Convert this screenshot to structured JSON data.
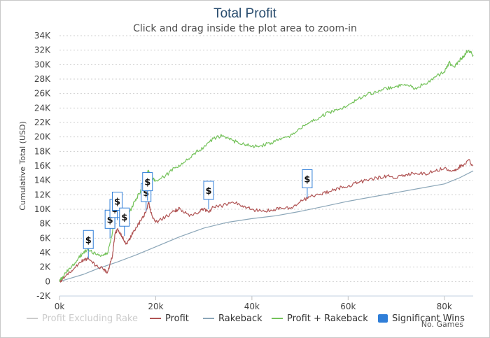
{
  "chart_data": {
    "type": "line",
    "title": "Total Profit",
    "subtitle": "Click and drag inside the plot area to zoom-in",
    "ylabel": "Cumulative Total (USD)",
    "xlabel": "No. Games",
    "ylim": [
      -2000,
      34000
    ],
    "xlim": [
      0,
      86000
    ],
    "y_ticks": [
      -2000,
      0,
      2000,
      4000,
      6000,
      8000,
      10000,
      12000,
      14000,
      16000,
      18000,
      20000,
      22000,
      24000,
      26000,
      28000,
      30000,
      32000,
      34000
    ],
    "y_tick_labels": [
      "-2K",
      "0",
      "2K",
      "4K",
      "6K",
      "8K",
      "10K",
      "12K",
      "14K",
      "16K",
      "18K",
      "20K",
      "22K",
      "24K",
      "26K",
      "28K",
      "30K",
      "32K",
      "34K"
    ],
    "x_ticks": [
      0,
      20000,
      40000,
      60000,
      80000
    ],
    "x_tick_labels": [
      "0k",
      "20k",
      "40k",
      "60k",
      "80k"
    ],
    "series": [
      {
        "name": "Profit Excluding Rake",
        "color": "#cccccc",
        "visible": false,
        "x": [],
        "values": []
      },
      {
        "name": "Profit",
        "color": "#b05454",
        "x": [
          0,
          1000,
          2500,
          4000,
          5000,
          6000,
          7500,
          9000,
          10000,
          11000,
          11500,
          12000,
          13000,
          14000,
          15000,
          16000,
          17000,
          18000,
          18500,
          19000,
          20000,
          22000,
          24000,
          25000,
          27000,
          29000,
          30000,
          31000,
          32000,
          34000,
          36000,
          38000,
          40000,
          42000,
          44000,
          46000,
          48000,
          50000,
          52000,
          54000,
          56000,
          58000,
          60000,
          62000,
          64000,
          66000,
          68000,
          70000,
          72000,
          74000,
          76000,
          78000,
          80000,
          82000,
          83000,
          84000,
          85000,
          86000
        ],
        "values": [
          0,
          500,
          1500,
          2500,
          3000,
          3200,
          2200,
          1800,
          1300,
          3500,
          6500,
          7200,
          6200,
          5200,
          6400,
          7500,
          8500,
          9700,
          11000,
          9500,
          8200,
          8900,
          9800,
          10100,
          9000,
          9600,
          10100,
          9600,
          10300,
          10500,
          11000,
          10500,
          10000,
          9700,
          9900,
          10200,
          10100,
          11000,
          11700,
          12000,
          12400,
          12900,
          13200,
          13700,
          14000,
          14300,
          14600,
          14300,
          14800,
          15000,
          14900,
          15300,
          15700,
          15300,
          15800,
          16100,
          16800,
          16000
        ]
      },
      {
        "name": "Rakeback",
        "color": "#8ba6b8",
        "x": [
          0,
          2000,
          5000,
          8000,
          12000,
          16000,
          20000,
          25000,
          30000,
          35000,
          40000,
          45000,
          50000,
          55000,
          60000,
          65000,
          70000,
          75000,
          80000,
          83000,
          86000
        ],
        "values": [
          0,
          400,
          1000,
          1800,
          2700,
          3700,
          4800,
          6200,
          7400,
          8200,
          8700,
          9100,
          9700,
          10400,
          11100,
          11700,
          12300,
          12900,
          13500,
          14300,
          15300
        ]
      },
      {
        "name": "Profit + Rakeback",
        "color": "#74c25a",
        "x": [
          0,
          1000,
          2500,
          4000,
          5000,
          6000,
          7500,
          9000,
          10000,
          11000,
          11500,
          12000,
          13000,
          14000,
          15000,
          16000,
          17000,
          18000,
          18500,
          19000,
          20000,
          22000,
          24000,
          26000,
          28000,
          30000,
          32000,
          34000,
          36000,
          38000,
          40000,
          42000,
          44000,
          46000,
          48000,
          50000,
          52000,
          54000,
          56000,
          58000,
          60000,
          62000,
          64000,
          66000,
          68000,
          70000,
          72000,
          74000,
          76000,
          78000,
          80000,
          81000,
          82000,
          83000,
          84000,
          85000,
          86000
        ],
        "values": [
          0,
          1000,
          2000,
          3300,
          4000,
          4500,
          3800,
          3600,
          3900,
          6800,
          9000,
          9900,
          9500,
          8800,
          10200,
          11500,
          12700,
          14300,
          15400,
          14500,
          13900,
          14600,
          15700,
          16500,
          17700,
          18600,
          19800,
          20200,
          19500,
          19000,
          18700,
          18800,
          19200,
          19600,
          20200,
          21100,
          22000,
          22700,
          23400,
          23800,
          24400,
          25200,
          25900,
          26200,
          26700,
          27000,
          27100,
          26800,
          27300,
          28300,
          29000,
          30300,
          29700,
          30500,
          31200,
          32000,
          31300
        ]
      }
    ],
    "significant_wins": {
      "name": "Significant Wins",
      "color": "#2f7ed8",
      "symbol": "$",
      "points": [
        {
          "x": 6000,
          "y": 3200
        },
        {
          "x": 10500,
          "y": 6000
        },
        {
          "x": 11500,
          "y": 7500
        },
        {
          "x": 12000,
          "y": 8500
        },
        {
          "x": 13500,
          "y": 6300
        },
        {
          "x": 18000,
          "y": 9700
        },
        {
          "x": 18300,
          "y": 11200
        },
        {
          "x": 31000,
          "y": 10000
        },
        {
          "x": 51500,
          "y": 11600
        }
      ]
    }
  }
}
